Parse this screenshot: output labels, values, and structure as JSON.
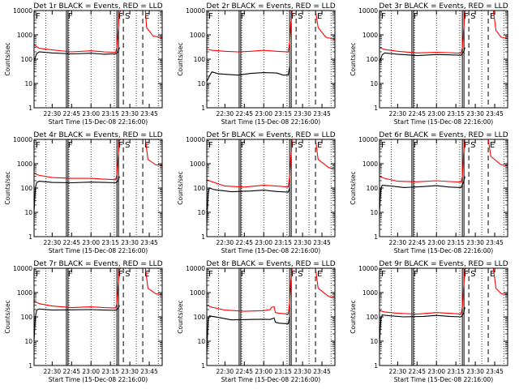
{
  "charts": [
    {
      "title": "Det 1r BLACK = Events, RED = LLD",
      "xlabel": "Start Time (15-Dec-08 22:16:00)"
    },
    {
      "title": "Det 2r BLACK = Events, RED = LLD",
      "xlabel": "Start Time (15-Dec-08 22:16:00)"
    },
    {
      "title": "Det 3r BLACK = Events, RED = LLD",
      "xlabel": "Start Time (15-Dec-08 22:16:00)"
    },
    {
      "title": "Det 4r BLACK = Events, RED = LLD",
      "xlabel": "Start Time (15-Dec-08 22:16:00)"
    },
    {
      "title": "Det 5r BLACK = Events, RED = LLD",
      "xlabel": "Start Time (15-Dec-08 22:16:00)"
    },
    {
      "title": "Det 6r BLACK = Events, RED = LLD",
      "xlabel": "Start Time (15-Dec-08 22:16:00)"
    },
    {
      "title": "Det 7r BLACK = Events, RED = LLD",
      "xlabel": "Start Time (15-Dec-08 22:16:00)"
    },
    {
      "title": "Det 8r BLACK = Events, RED = LLD",
      "xlabel": "Start Time (15-Dec-08 22:16:00)"
    },
    {
      "title": "Det 9r BLACK = Events, RED = LLD",
      "xlabel": "Start Time (15-Dec-08 22:16:00)"
    }
  ],
  "chart_data": {
    "type": "line",
    "ylabel": "Counts/sec",
    "yscale": "log",
    "ylim": [
      1,
      10000
    ],
    "yticks": [
      "1",
      "10",
      "100",
      "1000",
      "10000"
    ],
    "xlim": [
      "22:16",
      "23:55"
    ],
    "xticks": [
      "22:30",
      "22:45",
      "23:00",
      "23:15",
      "23:30",
      "23:45"
    ],
    "colors": {
      "events": "#000000",
      "lld": "#ff0000"
    },
    "markers": [
      {
        "label": "F",
        "time": "22:16",
        "style": "solid"
      },
      {
        "label": "F",
        "time": "22:41",
        "style": "solid"
      },
      {
        "label": "F",
        "time": "23:20",
        "style": "solid"
      },
      {
        "label": "S",
        "time": "23:25",
        "style": "dashed"
      },
      {
        "label": "E",
        "time": "23:40",
        "style": "dashed"
      }
    ],
    "dotted_times": [
      "22:25",
      "22:43",
      "23:00",
      "23:18",
      "23:35",
      "23:52"
    ],
    "panels": [
      {
        "events": [
          [
            "22:16",
            80
          ],
          [
            "22:17",
            120
          ],
          [
            "22:18",
            170
          ],
          [
            "22:20",
            200
          ],
          [
            "22:30",
            180
          ],
          [
            "22:45",
            165
          ],
          [
            "23:00",
            175
          ],
          [
            "23:10",
            160
          ],
          [
            "23:19",
            165
          ],
          [
            "23:21",
            200
          ],
          [
            "23:22",
            300
          ]
        ],
        "lld": [
          [
            "22:16",
            380
          ],
          [
            "22:18",
            330
          ],
          [
            "22:20",
            280
          ],
          [
            "22:30",
            240
          ],
          [
            "22:45",
            200
          ],
          [
            "23:00",
            220
          ],
          [
            "23:10",
            200
          ],
          [
            "23:19",
            190
          ],
          [
            "23:20",
            300
          ],
          [
            "23:21",
            1500
          ],
          [
            "23:22",
            8000
          ],
          [
            "23:23",
            10000
          ],
          [
            "23:42",
            10000
          ],
          [
            "23:43",
            2000
          ],
          [
            "23:48",
            900
          ],
          [
            "23:55",
            750
          ]
        ]
      },
      {
        "events": [
          [
            "22:16",
            12
          ],
          [
            "22:18",
            20
          ],
          [
            "22:20",
            30
          ],
          [
            "22:25",
            25
          ],
          [
            "22:40",
            22
          ],
          [
            "22:50",
            26
          ],
          [
            "23:00",
            28
          ],
          [
            "23:10",
            27
          ],
          [
            "23:15",
            22
          ],
          [
            "23:19",
            22
          ],
          [
            "23:20",
            50
          ]
        ],
        "lld": [
          [
            "22:16",
            260
          ],
          [
            "22:20",
            230
          ],
          [
            "22:30",
            210
          ],
          [
            "22:40",
            200
          ],
          [
            "22:50",
            210
          ],
          [
            "23:00",
            230
          ],
          [
            "23:10",
            210
          ],
          [
            "23:19",
            200
          ],
          [
            "23:20",
            500
          ],
          [
            "23:21",
            3000
          ],
          [
            "23:22",
            10000
          ],
          [
            "23:40",
            10000
          ],
          [
            "23:42",
            2000
          ],
          [
            "23:48",
            800
          ],
          [
            "23:55",
            650
          ]
        ]
      },
      {
        "events": [
          [
            "22:16",
            70
          ],
          [
            "22:18",
            150
          ],
          [
            "22:20",
            180
          ],
          [
            "22:30",
            160
          ],
          [
            "22:45",
            140
          ],
          [
            "23:00",
            155
          ],
          [
            "23:10",
            150
          ],
          [
            "23:19",
            145
          ],
          [
            "23:21",
            200
          ],
          [
            "23:22",
            300
          ]
        ],
        "lld": [
          [
            "22:16",
            300
          ],
          [
            "22:20",
            250
          ],
          [
            "22:30",
            210
          ],
          [
            "22:45",
            180
          ],
          [
            "23:00",
            190
          ],
          [
            "23:10",
            185
          ],
          [
            "23:19",
            175
          ],
          [
            "23:20",
            300
          ],
          [
            "23:21",
            1500
          ],
          [
            "23:22",
            9000
          ],
          [
            "23:23",
            10000
          ],
          [
            "23:44",
            10000
          ],
          [
            "23:46",
            1500
          ],
          [
            "23:50",
            800
          ],
          [
            "23:55",
            700
          ]
        ]
      },
      {
        "events": [
          [
            "22:16",
            10
          ],
          [
            "22:17",
            100
          ],
          [
            "22:18",
            170
          ],
          [
            "22:20",
            190
          ],
          [
            "22:30",
            170
          ],
          [
            "22:45",
            165
          ],
          [
            "23:00",
            175
          ],
          [
            "23:10",
            170
          ],
          [
            "23:19",
            165
          ],
          [
            "23:21",
            200
          ],
          [
            "23:22",
            300
          ]
        ],
        "lld": [
          [
            "22:16",
            400
          ],
          [
            "22:20",
            330
          ],
          [
            "22:30",
            270
          ],
          [
            "22:45",
            250
          ],
          [
            "23:00",
            250
          ],
          [
            "23:10",
            230
          ],
          [
            "23:19",
            220
          ],
          [
            "23:20",
            350
          ],
          [
            "23:21",
            2000
          ],
          [
            "23:22",
            9000
          ],
          [
            "23:23",
            10000
          ],
          [
            "23:42",
            10000
          ],
          [
            "23:44",
            1500
          ],
          [
            "23:50",
            900
          ],
          [
            "23:55",
            850
          ]
        ]
      },
      {
        "events": [
          [
            "22:16",
            3
          ],
          [
            "22:17",
            60
          ],
          [
            "22:18",
            100
          ],
          [
            "22:22",
            85
          ],
          [
            "22:35",
            70
          ],
          [
            "22:50",
            75
          ],
          [
            "23:00",
            82
          ],
          [
            "23:10",
            72
          ],
          [
            "23:19",
            68
          ],
          [
            "23:20",
            100
          ]
        ],
        "lld": [
          [
            "22:16",
            220
          ],
          [
            "22:20",
            180
          ],
          [
            "22:30",
            120
          ],
          [
            "22:45",
            110
          ],
          [
            "23:00",
            130
          ],
          [
            "23:10",
            120
          ],
          [
            "23:19",
            110
          ],
          [
            "23:20",
            300
          ],
          [
            "23:21",
            2000
          ],
          [
            "23:22",
            10000
          ],
          [
            "23:40",
            10000
          ],
          [
            "23:42",
            1500
          ],
          [
            "23:50",
            700
          ],
          [
            "23:55",
            600
          ]
        ]
      },
      {
        "events": [
          [
            "22:16",
            10
          ],
          [
            "22:17",
            90
          ],
          [
            "22:18",
            130
          ],
          [
            "22:25",
            120
          ],
          [
            "22:35",
            105
          ],
          [
            "22:50",
            115
          ],
          [
            "23:00",
            125
          ],
          [
            "23:10",
            110
          ],
          [
            "23:19",
            105
          ],
          [
            "23:21",
            180
          ],
          [
            "23:22",
            300
          ]
        ],
        "lld": [
          [
            "22:16",
            300
          ],
          [
            "22:20",
            250
          ],
          [
            "22:30",
            190
          ],
          [
            "22:45",
            180
          ],
          [
            "23:00",
            200
          ],
          [
            "23:10",
            185
          ],
          [
            "23:19",
            175
          ],
          [
            "23:20",
            300
          ],
          [
            "23:21",
            2500
          ],
          [
            "23:22",
            10000
          ],
          [
            "23:40",
            10000
          ],
          [
            "23:42",
            2000
          ],
          [
            "23:50",
            900
          ],
          [
            "23:55",
            800
          ]
        ]
      },
      {
        "events": [
          [
            "22:16",
            10
          ],
          [
            "22:17",
            100
          ],
          [
            "22:18",
            190
          ],
          [
            "22:20",
            210
          ],
          [
            "22:30",
            190
          ],
          [
            "22:45",
            195
          ],
          [
            "23:00",
            200
          ],
          [
            "23:10",
            190
          ],
          [
            "23:19",
            185
          ],
          [
            "23:21",
            220
          ],
          [
            "23:22",
            300
          ]
        ],
        "lld": [
          [
            "22:16",
            450
          ],
          [
            "22:20",
            350
          ],
          [
            "22:30",
            280
          ],
          [
            "22:45",
            240
          ],
          [
            "23:00",
            260
          ],
          [
            "23:10",
            240
          ],
          [
            "23:19",
            230
          ],
          [
            "23:20",
            350
          ],
          [
            "23:21",
            2000
          ],
          [
            "23:22",
            9000
          ],
          [
            "23:23",
            10000
          ],
          [
            "23:42",
            10000
          ],
          [
            "23:44",
            1500
          ],
          [
            "23:50",
            900
          ],
          [
            "23:55",
            800
          ]
        ]
      },
      {
        "events": [
          [
            "22:16",
            3
          ],
          [
            "22:17",
            70
          ],
          [
            "22:18",
            110
          ],
          [
            "22:25",
            95
          ],
          [
            "22:35",
            75
          ],
          [
            "22:50",
            78
          ],
          [
            "23:00",
            80
          ],
          [
            "23:05",
            78
          ],
          [
            "23:08",
            90
          ],
          [
            "23:09",
            60
          ],
          [
            "23:12",
            55
          ],
          [
            "23:19",
            52
          ],
          [
            "23:20",
            100
          ]
        ],
        "lld": [
          [
            "22:16",
            300
          ],
          [
            "22:20",
            250
          ],
          [
            "22:30",
            190
          ],
          [
            "22:45",
            170
          ],
          [
            "23:00",
            180
          ],
          [
            "23:05",
            200
          ],
          [
            "23:06",
            250
          ],
          [
            "23:08",
            260
          ],
          [
            "23:09",
            150
          ],
          [
            "23:12",
            140
          ],
          [
            "23:19",
            130
          ],
          [
            "23:20",
            400
          ],
          [
            "23:21",
            3000
          ],
          [
            "23:22",
            10000
          ],
          [
            "23:40",
            10000
          ],
          [
            "23:42",
            1500
          ],
          [
            "23:50",
            700
          ],
          [
            "23:55",
            600
          ]
        ]
      },
      {
        "events": [
          [
            "22:16",
            8
          ],
          [
            "22:17",
            80
          ],
          [
            "22:18",
            120
          ],
          [
            "22:25",
            110
          ],
          [
            "22:35",
            100
          ],
          [
            "22:50",
            105
          ],
          [
            "23:00",
            115
          ],
          [
            "23:10",
            105
          ],
          [
            "23:19",
            100
          ],
          [
            "23:21",
            140
          ],
          [
            "23:22",
            250
          ]
        ],
        "lld": [
          [
            "22:16",
            180
          ],
          [
            "22:20",
            160
          ],
          [
            "22:30",
            140
          ],
          [
            "22:45",
            130
          ],
          [
            "23:00",
            150
          ],
          [
            "23:10",
            140
          ],
          [
            "23:19",
            130
          ],
          [
            "23:20",
            250
          ],
          [
            "23:21",
            1500
          ],
          [
            "23:22",
            9000
          ],
          [
            "23:23",
            10000
          ],
          [
            "23:44",
            10000
          ],
          [
            "23:46",
            1500
          ],
          [
            "23:50",
            900
          ],
          [
            "23:55",
            800
          ]
        ]
      }
    ]
  }
}
